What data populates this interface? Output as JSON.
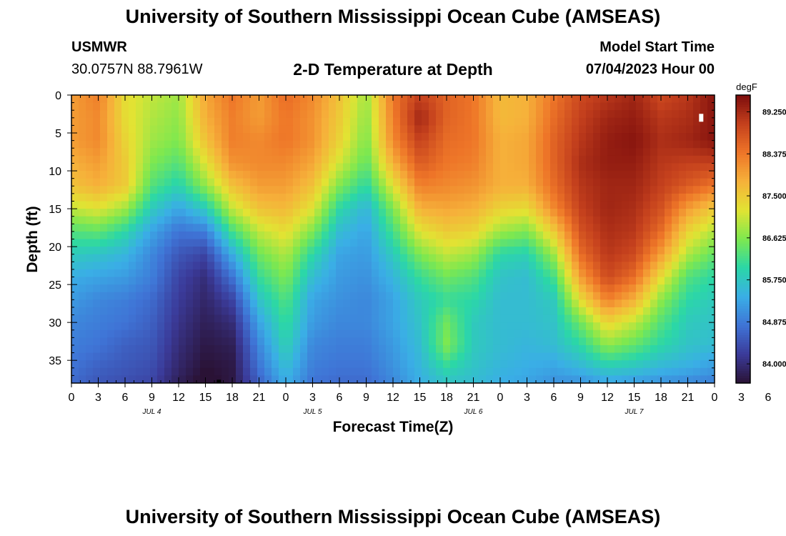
{
  "page": {
    "title": "University of Southern Mississippi Ocean Cube (AMSEAS)",
    "footer_title": "University of Southern Mississippi Ocean Cube (AMSEAS)",
    "station": "USMWR",
    "coords": "30.0757N  88.7961W",
    "subtitle": "2-D Temperature at Depth",
    "model_start_label": "Model Start Time",
    "model_start_value": "07/04/2023 Hour 00"
  },
  "colors": {
    "scale": [
      "#2a1235",
      "#3b3b9a",
      "#3f74d6",
      "#3aaee6",
      "#2bd7a7",
      "#7ee84f",
      "#e2e333",
      "#f6b13a",
      "#ee7528",
      "#c4401d",
      "#7c0c0c"
    ],
    "axis": "#000000",
    "marker_dark": "#000000",
    "marker_light": "#ffffff"
  },
  "chart_data": {
    "type": "heatmap",
    "title": "2-D Temperature at Depth",
    "xlabel": "Forecast Time(Z)",
    "ylabel": "Depth (ft)",
    "units": "degF",
    "x_start": 0,
    "x_end": 72,
    "x_step_hours": 3,
    "x_tick_labels": [
      "0",
      "3",
      "6",
      "9",
      "12",
      "15",
      "18",
      "21",
      "0",
      "3",
      "6",
      "9",
      "12",
      "15",
      "18",
      "21",
      "0",
      "3",
      "6",
      "9",
      "12",
      "15",
      "18",
      "21",
      "0",
      "3",
      "6",
      "9",
      "12",
      "15",
      "18",
      "21",
      "0"
    ],
    "date_labels": [
      {
        "hour": 9,
        "text": "JUL 4"
      },
      {
        "hour": 27,
        "text": "JUL 5"
      },
      {
        "hour": 45,
        "text": "JUL 6"
      },
      {
        "hour": 63,
        "text": "JUL 7"
      }
    ],
    "ylim": [
      0,
      38
    ],
    "y_ticks": [
      0,
      5,
      10,
      15,
      20,
      25,
      30,
      35
    ],
    "y_tick_labels": [
      "0",
      "5",
      "10",
      "15",
      "20",
      "25",
      "30",
      "35"
    ],
    "colorbar": {
      "min": 83.6,
      "max": 89.6,
      "ticks": [
        84.0,
        84.875,
        85.75,
        86.625,
        87.5,
        88.375,
        89.25
      ],
      "tick_labels": [
        "84.000",
        "84.875",
        "85.750",
        "86.625",
        "87.500",
        "88.375",
        "89.250"
      ]
    },
    "depths": [
      0,
      3,
      6,
      9,
      12,
      15,
      18,
      21,
      24,
      27,
      30,
      33,
      36,
      38
    ],
    "hours": [
      0,
      3,
      6,
      9,
      12,
      15,
      18,
      21,
      24,
      27,
      30,
      33,
      36,
      39,
      42,
      45,
      48,
      51,
      54,
      57,
      60,
      63,
      66,
      69,
      72
    ],
    "values": [
      [
        88.0,
        88.3,
        87.3,
        87.0,
        86.8,
        87.9,
        88.4,
        88.0,
        88.5,
        88.2,
        87.6,
        86.8,
        88.4,
        89.0,
        88.6,
        88.4,
        87.7,
        87.8,
        88.4,
        88.9,
        89.1,
        89.3,
        88.9,
        89.1,
        89.5
      ],
      [
        88.0,
        88.2,
        87.3,
        86.9,
        86.7,
        87.8,
        88.3,
        88.0,
        88.4,
        88.1,
        87.5,
        86.7,
        88.3,
        89.3,
        88.6,
        88.4,
        87.7,
        87.8,
        88.5,
        89.0,
        89.3,
        89.4,
        89.1,
        89.2,
        89.5
      ],
      [
        88.0,
        88.2,
        87.4,
        86.8,
        86.6,
        87.6,
        88.3,
        88.2,
        88.4,
        88.1,
        87.4,
        86.6,
        88.2,
        89.0,
        88.5,
        88.4,
        87.8,
        87.9,
        88.6,
        89.1,
        89.4,
        89.5,
        89.2,
        89.3,
        89.5
      ],
      [
        87.8,
        88.0,
        87.5,
        86.6,
        86.3,
        87.2,
        88.1,
        88.2,
        88.2,
        87.9,
        87.1,
        86.4,
        87.8,
        88.7,
        88.4,
        88.3,
        87.8,
        87.9,
        88.6,
        89.2,
        89.4,
        89.4,
        89.1,
        89.0,
        89.0
      ],
      [
        87.6,
        87.8,
        87.5,
        86.3,
        85.9,
        86.7,
        87.6,
        88.0,
        88.0,
        87.6,
        86.6,
        86.0,
        87.2,
        88.3,
        88.2,
        88.1,
        87.8,
        87.8,
        88.5,
        89.1,
        89.3,
        89.3,
        89.0,
        88.7,
        88.4
      ],
      [
        87.0,
        87.2,
        86.8,
        85.8,
        85.3,
        85.8,
        87.0,
        87.6,
        87.7,
        87.2,
        86.0,
        85.5,
        86.6,
        87.8,
        87.9,
        87.8,
        87.4,
        87.3,
        88.2,
        89.0,
        89.3,
        89.2,
        88.8,
        88.0,
        87.5
      ],
      [
        86.3,
        86.4,
        86.0,
        85.3,
        84.8,
        84.9,
        86.2,
        87.0,
        87.3,
        86.6,
        85.6,
        85.3,
        86.2,
        87.2,
        87.5,
        87.4,
        86.8,
        86.6,
        87.5,
        88.8,
        89.2,
        89.1,
        88.5,
        87.4,
        86.9
      ],
      [
        85.8,
        85.7,
        85.5,
        85.0,
        84.5,
        84.3,
        85.4,
        86.5,
        86.9,
        86.0,
        85.3,
        85.2,
        85.8,
        86.6,
        87.0,
        86.8,
        86.0,
        85.9,
        86.8,
        88.5,
        89.1,
        88.9,
        88.0,
        86.9,
        86.4
      ],
      [
        85.4,
        85.3,
        85.2,
        84.9,
        84.3,
        84.0,
        84.8,
        86.1,
        86.6,
        85.6,
        85.2,
        85.1,
        85.5,
        86.1,
        86.5,
        86.3,
        85.7,
        85.6,
        86.2,
        88.0,
        88.9,
        88.5,
        87.3,
        86.3,
        86.0
      ],
      [
        85.2,
        85.0,
        84.9,
        84.7,
        84.2,
        83.9,
        84.3,
        85.7,
        86.3,
        85.3,
        85.1,
        85.0,
        85.3,
        85.8,
        86.1,
        86.0,
        85.6,
        85.6,
        85.8,
        87.3,
        88.3,
        87.8,
        86.7,
        86.0,
        85.8
      ],
      [
        85.0,
        84.9,
        84.8,
        84.6,
        84.1,
        83.8,
        84.0,
        85.3,
        86.1,
        85.2,
        85.0,
        85.0,
        85.3,
        85.7,
        86.5,
        85.8,
        85.6,
        85.6,
        85.7,
        86.5,
        87.4,
        87.0,
        86.3,
        85.8,
        85.7
      ],
      [
        84.9,
        84.8,
        84.6,
        84.5,
        84.0,
        83.7,
        83.8,
        85.0,
        85.9,
        85.0,
        84.9,
        84.9,
        85.2,
        85.6,
        86.6,
        85.8,
        85.6,
        85.5,
        85.6,
        86.0,
        86.7,
        86.4,
        86.0,
        85.7,
        85.6
      ],
      [
        84.8,
        84.6,
        84.5,
        84.4,
        83.9,
        83.6,
        83.7,
        84.8,
        85.6,
        84.9,
        84.8,
        84.8,
        85.1,
        85.5,
        86.0,
        85.7,
        85.5,
        85.4,
        85.3,
        85.5,
        85.8,
        85.7,
        85.5,
        85.4,
        85.2
      ],
      [
        84.7,
        84.5,
        84.4,
        84.3,
        83.8,
        83.5,
        83.7,
        84.6,
        85.4,
        84.8,
        84.7,
        84.7,
        85.0,
        85.4,
        85.7,
        85.6,
        85.4,
        85.3,
        85.1,
        85.1,
        85.3,
        85.2,
        85.1,
        85.0,
        84.9
      ]
    ],
    "markers": [
      {
        "hour": 16.5,
        "depth": 37.8,
        "color": "dark"
      },
      {
        "hour": 70.5,
        "depth": 3.0,
        "color": "light"
      }
    ]
  }
}
